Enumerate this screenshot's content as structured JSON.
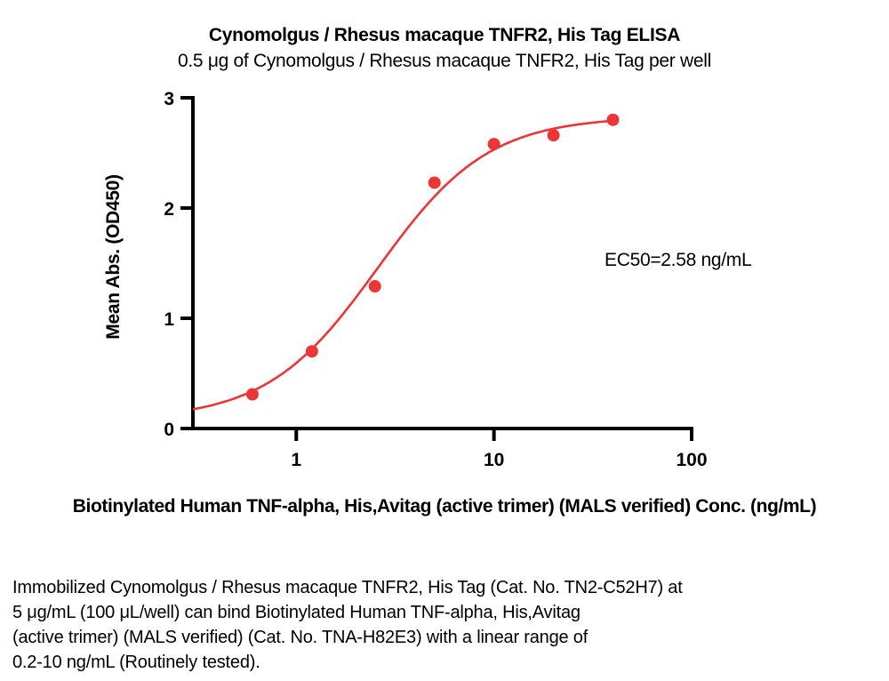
{
  "title": "Cynomolgus / Rhesus macaque TNFR2, His Tag ELISA",
  "subtitle": "0.5 μg of Cynomolgus / Rhesus macaque TNFR2, His Tag per well",
  "chart_data": {
    "type": "scatter",
    "title": "Cynomolgus / Rhesus macaque TNFR2, His Tag ELISA",
    "subtitle": "0.5 μg of Cynomolgus / Rhesus macaque TNFR2, His Tag per well",
    "xlabel": "Biotinylated Human TNF-alpha, His,Avitag (active trimer) (MALS verified) Conc. (ng/mL)",
    "ylabel": "Mean Abs. (OD450)",
    "xscale": "log",
    "xlim": [
      0.3,
      100
    ],
    "ylim": [
      0,
      3
    ],
    "x_ticks": [
      1,
      10,
      100
    ],
    "y_ticks": [
      0,
      1,
      2,
      3
    ],
    "grid": false,
    "legend": "none",
    "points": [
      {
        "x": 0.6,
        "y": 0.31
      },
      {
        "x": 1.2,
        "y": 0.7
      },
      {
        "x": 2.5,
        "y": 1.29
      },
      {
        "x": 5,
        "y": 2.23
      },
      {
        "x": 10,
        "y": 2.58
      },
      {
        "x": 20,
        "y": 2.66
      },
      {
        "x": 40,
        "y": 2.8
      }
    ],
    "fit_curve": {
      "model": "4PL sigmoid",
      "bottom": 0.08,
      "top": 2.83,
      "ec50": 2.58,
      "hill": 1.55,
      "x_start": 0.3,
      "x_end": 40
    },
    "annotation": "EC50=2.58 ng/mL",
    "colors": {
      "series": "#EC3536",
      "axis": "#000000"
    }
  },
  "caption": {
    "lines": [
      "Immobilized Cynomolgus / Rhesus macaque TNFR2, His Tag (Cat. No. TN2-C52H7) at",
      "5 μg/mL (100 μL/well) can bind Biotinylated Human TNF-alpha, His,Avitag",
      "(active trimer) (MALS verified) (Cat. No. TNA-H82E3) with a linear range of",
      "0.2-10 ng/mL (Routinely tested)."
    ]
  }
}
